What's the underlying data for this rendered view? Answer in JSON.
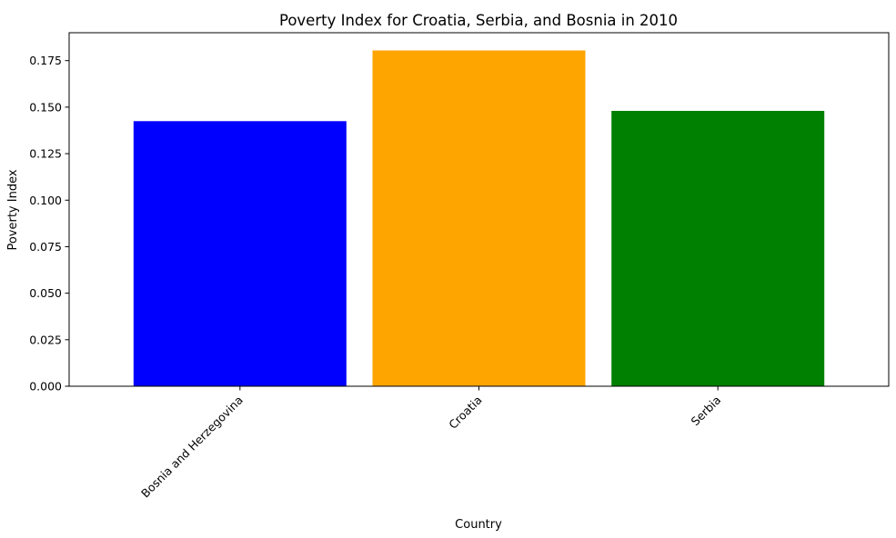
{
  "chart_data": {
    "type": "bar",
    "title": "Poverty Index for Croatia, Serbia, and Bosnia in 2010",
    "xlabel": "Country",
    "ylabel": "Poverty Index",
    "categories": [
      "Bosnia and Herzegovina",
      "Croatia",
      "Serbia"
    ],
    "values": [
      0.1425,
      0.1805,
      0.148
    ],
    "colors": [
      "#0000ff",
      "#ffa500",
      "#008000"
    ],
    "ylim": [
      0,
      0.19
    ],
    "yticks": [
      0.0,
      0.025,
      0.05,
      0.075,
      0.1,
      0.125,
      0.15,
      0.175
    ],
    "ytick_labels": [
      "0.000",
      "0.025",
      "0.050",
      "0.075",
      "0.100",
      "0.125",
      "0.150",
      "0.175"
    ],
    "xtick_rotation_deg": 45,
    "grid": false,
    "legend": "none"
  }
}
